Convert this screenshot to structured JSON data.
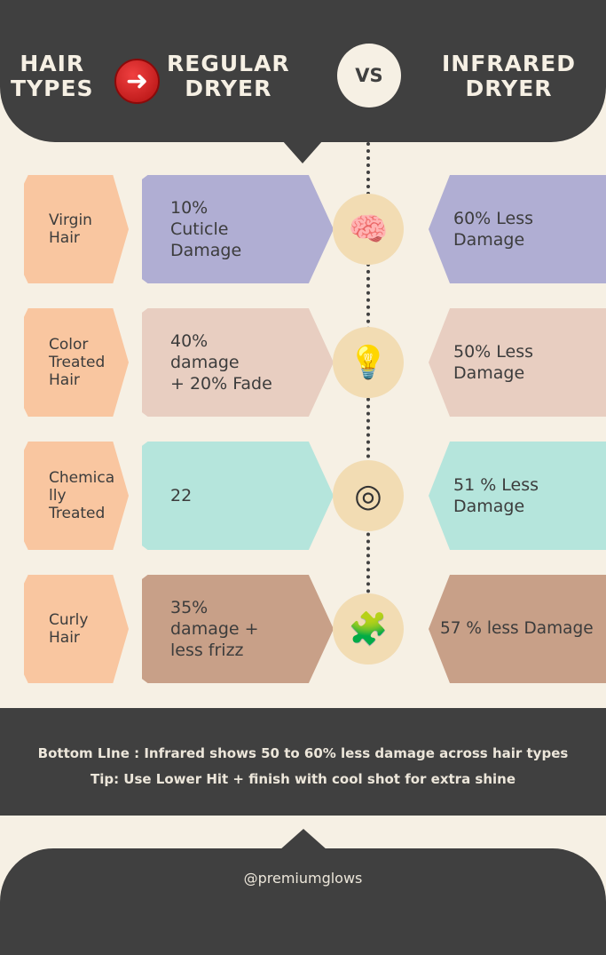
{
  "header": {
    "col1": "HAIR\nTYPES",
    "col2": "REGULAR\nDRYER",
    "vs": "VS",
    "col3": "INFRARED\nDRYER",
    "arrow_icon": "red-arrow-right-icon"
  },
  "colors": {
    "dark": "#404040",
    "background": "#f6f0e4",
    "tag": "#f9c6a0",
    "icon_circle": "#f2dcb3"
  },
  "rows": [
    {
      "hair_type": "Virgin\nHair",
      "regular": "10%\nCuticle\nDamage",
      "infrared": "60% Less\nDamage",
      "icon": "brain-icon",
      "color": "#b0aed3"
    },
    {
      "hair_type": "Color\nTreated\nHair",
      "regular": "40%\ndamage\n+ 20% Fade",
      "infrared": "50% Less\nDamage",
      "icon": "lightbulb-icon",
      "color": "#e8cec1"
    },
    {
      "hair_type": "Chemica\nlly\nTreated",
      "regular": "22",
      "infrared": "51 % Less\nDamage",
      "icon": "target-icon",
      "color": "#b5e5dc"
    },
    {
      "hair_type": "Curly\nHair",
      "regular": "35%\ndamage +\nless frizz",
      "infrared": "57 % less Damage",
      "icon": "puzzle-icon",
      "color": "#c8a088"
    }
  ],
  "bottom": {
    "line1": "Bottom LIne : Infrared shows 50 to 60% less damage across hair types",
    "line2": "Tip: Use Lower Hit + finish with cool shot for extra shine"
  },
  "footer": {
    "handle": "@premiumglows"
  }
}
